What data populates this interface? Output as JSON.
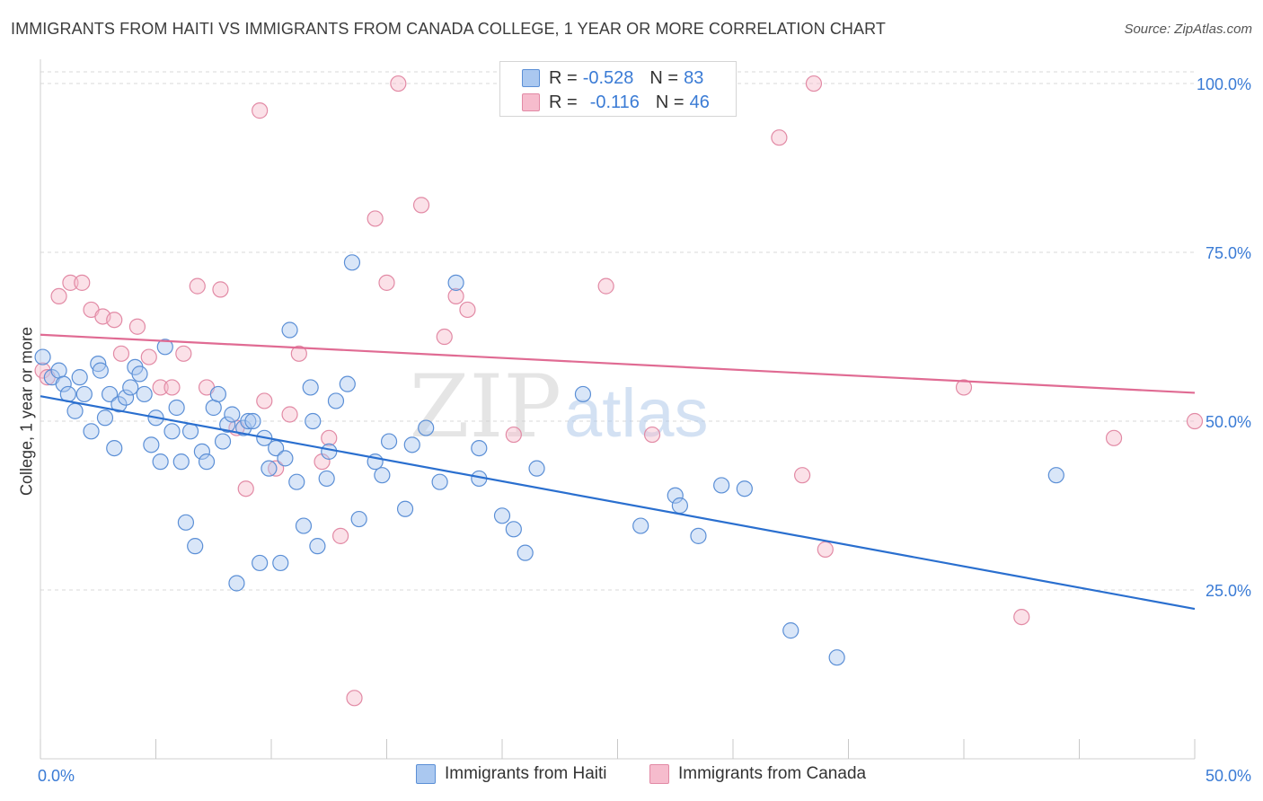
{
  "title": "IMMIGRANTS FROM HAITI VS IMMIGRANTS FROM CANADA COLLEGE, 1 YEAR OR MORE CORRELATION CHART",
  "source": "Source: ZipAtlas.com",
  "watermark": {
    "zip": "ZIP",
    "atlas": "atlas"
  },
  "legend": {
    "r_label": "R =",
    "n_label": "N =",
    "haiti": {
      "r": "-0.528",
      "n": "83"
    },
    "canada": {
      "r": "-0.116",
      "n": "46"
    }
  },
  "colors": {
    "haiti_fill": "#aac8f0",
    "haiti_stroke": "#5b8fd6",
    "haiti_line": "#2a6fcf",
    "canada_fill": "#f6bccd",
    "canada_stroke": "#e28aa5",
    "canada_line": "#e06b93",
    "tick_label": "#3a7bd5",
    "grid": "#d9d9d9"
  },
  "chart_data": {
    "type": "scatter",
    "title": "IMMIGRANTS FROM HAITI VS IMMIGRANTS FROM CANADA COLLEGE, 1 YEAR OR MORE CORRELATION CHART",
    "xlabel": "",
    "ylabel": "College, 1 year or more",
    "xlim": [
      0,
      50
    ],
    "ylim": [
      0,
      102
    ],
    "x_tick_labels": [
      "0.0%",
      "50.0%"
    ],
    "y_ticks": [
      25,
      50,
      75,
      100
    ],
    "y_tick_labels": [
      "25.0%",
      "50.0%",
      "75.0%",
      "100.0%"
    ],
    "grid": "horizontal dashed",
    "legend_position": "top-center",
    "series": [
      {
        "name": "Immigrants from Haiti",
        "trend": {
          "x": [
            0,
            50
          ],
          "y": [
            53.7,
            22.2
          ]
        },
        "points": [
          [
            0.1,
            59.5
          ],
          [
            0.5,
            56.5
          ],
          [
            0.8,
            57.5
          ],
          [
            1.0,
            55.5
          ],
          [
            1.2,
            54.0
          ],
          [
            1.5,
            51.5
          ],
          [
            1.7,
            56.5
          ],
          [
            1.9,
            54.0
          ],
          [
            2.2,
            48.5
          ],
          [
            2.5,
            58.5
          ],
          [
            2.6,
            57.5
          ],
          [
            2.8,
            50.5
          ],
          [
            3.0,
            54.0
          ],
          [
            3.2,
            46.0
          ],
          [
            3.4,
            52.5
          ],
          [
            3.7,
            53.5
          ],
          [
            3.9,
            55.0
          ],
          [
            4.1,
            58.0
          ],
          [
            4.3,
            57.0
          ],
          [
            4.5,
            54.0
          ],
          [
            4.8,
            46.5
          ],
          [
            5.0,
            50.5
          ],
          [
            5.2,
            44.0
          ],
          [
            5.4,
            61.0
          ],
          [
            5.7,
            48.5
          ],
          [
            5.9,
            52.0
          ],
          [
            6.1,
            44.0
          ],
          [
            6.3,
            35.0
          ],
          [
            6.5,
            48.5
          ],
          [
            6.7,
            31.5
          ],
          [
            7.0,
            45.5
          ],
          [
            7.2,
            44.0
          ],
          [
            7.5,
            52.0
          ],
          [
            7.7,
            54.0
          ],
          [
            7.9,
            47.0
          ],
          [
            8.1,
            49.5
          ],
          [
            8.3,
            51.0
          ],
          [
            8.5,
            26.0
          ],
          [
            8.8,
            49.0
          ],
          [
            9.0,
            50.0
          ],
          [
            9.2,
            50.0
          ],
          [
            9.5,
            29.0
          ],
          [
            9.7,
            47.5
          ],
          [
            9.9,
            43.0
          ],
          [
            10.2,
            46.0
          ],
          [
            10.4,
            29.0
          ],
          [
            10.6,
            44.5
          ],
          [
            10.8,
            63.5
          ],
          [
            11.1,
            41.0
          ],
          [
            11.4,
            34.5
          ],
          [
            11.7,
            55.0
          ],
          [
            11.8,
            50.0
          ],
          [
            12.0,
            31.5
          ],
          [
            12.4,
            41.5
          ],
          [
            12.5,
            45.5
          ],
          [
            12.8,
            53.0
          ],
          [
            13.3,
            55.5
          ],
          [
            13.5,
            73.5
          ],
          [
            13.8,
            35.5
          ],
          [
            14.5,
            44.0
          ],
          [
            14.8,
            42.0
          ],
          [
            15.1,
            47.0
          ],
          [
            15.8,
            37.0
          ],
          [
            16.1,
            46.5
          ],
          [
            16.7,
            49.0
          ],
          [
            17.3,
            41.0
          ],
          [
            18.0,
            70.5
          ],
          [
            19.0,
            46.0
          ],
          [
            19.0,
            41.5
          ],
          [
            20.0,
            36.0
          ],
          [
            20.5,
            34.0
          ],
          [
            21.0,
            30.5
          ],
          [
            21.5,
            43.0
          ],
          [
            23.5,
            54.0
          ],
          [
            26.0,
            34.5
          ],
          [
            27.5,
            39.0
          ],
          [
            27.7,
            37.5
          ],
          [
            28.5,
            33.0
          ],
          [
            29.5,
            40.5
          ],
          [
            30.5,
            40.0
          ],
          [
            32.5,
            19.0
          ],
          [
            34.5,
            15.0
          ],
          [
            44.0,
            42.0
          ]
        ]
      },
      {
        "name": "Immigrants from Canada",
        "trend": {
          "x": [
            0,
            50
          ],
          "y": [
            62.8,
            54.2
          ]
        },
        "points": [
          [
            0.1,
            57.5
          ],
          [
            0.3,
            56.5
          ],
          [
            0.8,
            68.5
          ],
          [
            1.3,
            70.5
          ],
          [
            1.8,
            70.5
          ],
          [
            2.2,
            66.5
          ],
          [
            2.7,
            65.5
          ],
          [
            3.2,
            65.0
          ],
          [
            3.5,
            60.0
          ],
          [
            4.2,
            64.0
          ],
          [
            4.7,
            59.5
          ],
          [
            5.2,
            55.0
          ],
          [
            5.7,
            55.0
          ],
          [
            6.2,
            60.0
          ],
          [
            6.8,
            70.0
          ],
          [
            7.2,
            55.0
          ],
          [
            7.8,
            69.5
          ],
          [
            8.5,
            49.0
          ],
          [
            8.9,
            40.0
          ],
          [
            9.5,
            96.0
          ],
          [
            9.7,
            53.0
          ],
          [
            10.2,
            43.0
          ],
          [
            10.8,
            51.0
          ],
          [
            11.2,
            60.0
          ],
          [
            12.2,
            44.0
          ],
          [
            12.5,
            47.5
          ],
          [
            13.0,
            33.0
          ],
          [
            13.6,
            9.0
          ],
          [
            14.5,
            80.0
          ],
          [
            15.0,
            70.5
          ],
          [
            15.5,
            100.0
          ],
          [
            16.5,
            82.0
          ],
          [
            17.5,
            62.5
          ],
          [
            18.0,
            68.5
          ],
          [
            18.5,
            66.5
          ],
          [
            20.5,
            48.0
          ],
          [
            24.5,
            70.0
          ],
          [
            26.5,
            48.0
          ],
          [
            32.0,
            92.0
          ],
          [
            33.0,
            42.0
          ],
          [
            33.5,
            100.0
          ],
          [
            34.0,
            31.0
          ],
          [
            40.0,
            55.0
          ],
          [
            42.5,
            21.0
          ],
          [
            46.5,
            47.5
          ],
          [
            50.0,
            50.0
          ]
        ]
      }
    ]
  }
}
